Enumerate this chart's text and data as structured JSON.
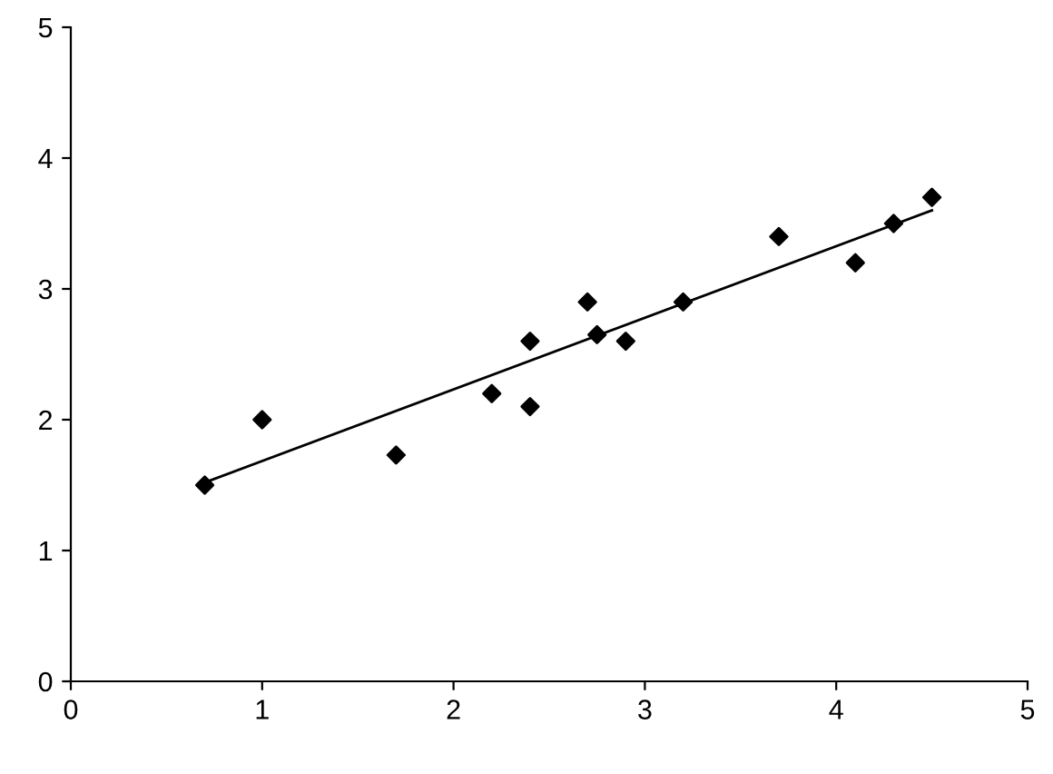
{
  "chart_data": {
    "type": "scatter",
    "xlim": [
      0,
      5
    ],
    "ylim": [
      0,
      5
    ],
    "xticks": [
      0,
      1,
      2,
      3,
      4,
      5
    ],
    "yticks": [
      0,
      1,
      2,
      3,
      4,
      5
    ],
    "grid": false,
    "legend": false,
    "marker": "diamond",
    "series": [
      {
        "color": "#000000",
        "x": [
          0.7,
          1.0,
          1.7,
          2.2,
          2.4,
          2.4,
          2.7,
          2.75,
          2.9,
          3.2,
          3.7,
          4.1,
          4.3,
          4.5
        ],
        "values": [
          1.5,
          2.0,
          1.73,
          2.2,
          2.6,
          2.1,
          2.9,
          2.65,
          2.6,
          2.9,
          3.4,
          3.2,
          3.5,
          3.7
        ]
      },
      {
        "type": "line",
        "color": "#000000",
        "marker": "none",
        "x": [
          0.7,
          4.5
        ],
        "values": [
          1.52,
          3.6
        ]
      }
    ]
  }
}
